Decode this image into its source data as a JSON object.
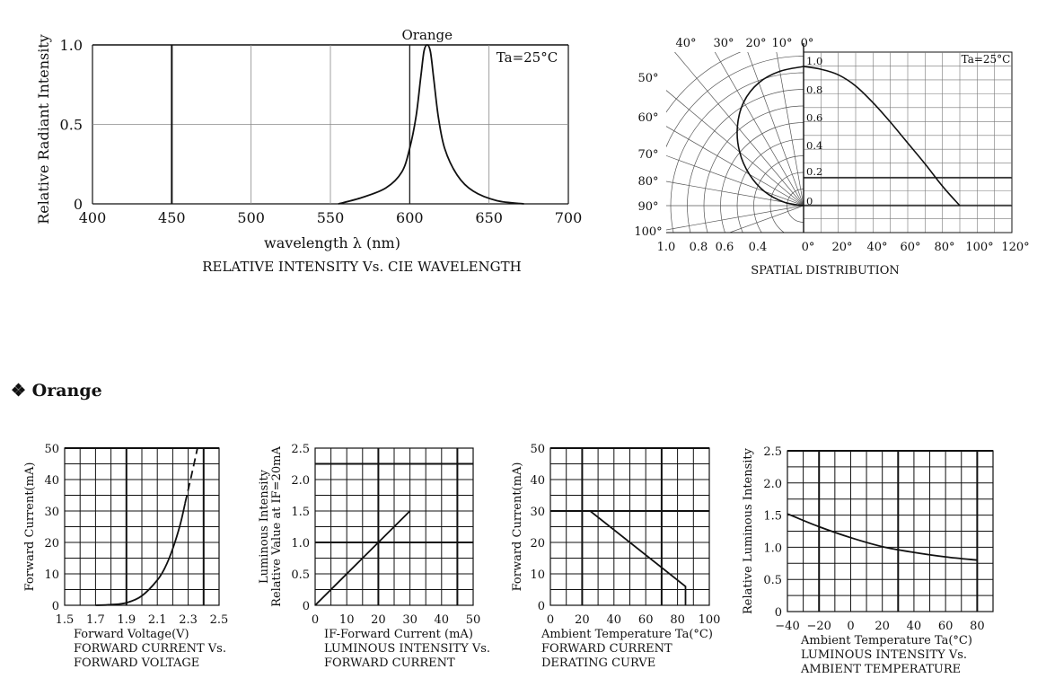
{
  "section_title": "❖ Orange",
  "chart_data": [
    {
      "type": "line",
      "caption": "RELATIVE INTENSITY Vs. CIE WAVELENGTH",
      "xlabel": "wavelength λ (nm)",
      "ylabel": "Relative Radiant Intensity",
      "xlim": [
        400,
        700
      ],
      "ylim": [
        0,
        1.0
      ],
      "x_ticks": [
        "400",
        "450",
        "500",
        "550",
        "600",
        "650",
        "700"
      ],
      "y_ticks": [
        "0",
        "0.5",
        "1.0"
      ],
      "annotation": "Ta=25°C",
      "peak_label": "Orange",
      "grid": true,
      "series": [
        {
          "name": "Orange",
          "points": [
            [
              555,
              0
            ],
            [
              570,
              0.04
            ],
            [
              585,
              0.1
            ],
            [
              595,
              0.2
            ],
            [
              600,
              0.35
            ],
            [
              604,
              0.55
            ],
            [
              607,
              0.8
            ],
            [
              609,
              0.96
            ],
            [
              611,
              1.0
            ],
            [
              613,
              0.96
            ],
            [
              615,
              0.8
            ],
            [
              618,
              0.55
            ],
            [
              622,
              0.35
            ],
            [
              630,
              0.18
            ],
            [
              640,
              0.08
            ],
            [
              655,
              0.02
            ],
            [
              672,
              0
            ]
          ]
        }
      ],
      "vertical_lines": [
        450
      ]
    },
    {
      "type": "polar",
      "caption": "SPATIAL DISTRIBUTION",
      "annotation": "Ta=25°C",
      "angle_labels": [
        "0°",
        "10°",
        "20°",
        "30°",
        "40°",
        "50°",
        "60°",
        "70°",
        "80°",
        "90°",
        "100°"
      ],
      "left_axis_labels": [
        "1.0",
        "0.8",
        "0.6",
        "0.4"
      ],
      "radial_labels": [
        "1.0",
        "0.8",
        "0.6",
        "0.4",
        "0.2",
        "0"
      ],
      "bottom_labels": [
        "0°",
        "20°",
        "40°",
        "60°",
        "80°",
        "100°",
        "120°"
      ],
      "series": [
        {
          "points": [
            [
              0,
              1.0
            ],
            [
              10,
              0.98
            ],
            [
              20,
              0.94
            ],
            [
              30,
              0.86
            ],
            [
              40,
              0.74
            ],
            [
              50,
              0.6
            ],
            [
              60,
              0.45
            ],
            [
              70,
              0.3
            ],
            [
              80,
              0.14
            ],
            [
              90,
              0
            ]
          ]
        }
      ]
    },
    {
      "type": "line",
      "caption": [
        "FORWARD CURRENT Vs.",
        "FORWARD VOLTAGE"
      ],
      "xlabel": "Forward Voltage(V)",
      "ylabel": "Forward Current(mA)",
      "xlim": [
        1.5,
        2.5
      ],
      "ylim": [
        0,
        50
      ],
      "x_ticks": [
        "1.5",
        "1.7",
        "1.9",
        "2.1",
        "2.3",
        "2.5"
      ],
      "y_ticks": [
        "0",
        "10",
        "20",
        "30",
        "40",
        "50"
      ],
      "series": [
        {
          "style": "solid",
          "points": [
            [
              1.7,
              0
            ],
            [
              1.8,
              0.2
            ],
            [
              1.9,
              0.8
            ],
            [
              2.0,
              3
            ],
            [
              2.1,
              8
            ],
            [
              2.15,
              12
            ],
            [
              2.2,
              18
            ],
            [
              2.25,
              26
            ],
            [
              2.28,
              32.5
            ]
          ]
        },
        {
          "style": "dashed",
          "points": [
            [
              2.28,
              32.5
            ],
            [
              2.32,
              41
            ],
            [
              2.36,
              50
            ]
          ]
        }
      ]
    },
    {
      "type": "line",
      "caption": [
        "LUMINOUS INTENSITY Vs.",
        "FORWARD CURRENT"
      ],
      "xlabel": "IF-Forward Current (mA)",
      "ylabel": [
        "Luminous Intensity",
        "Relative Value at IF=20mA"
      ],
      "xlim": [
        0,
        50
      ],
      "ylim": [
        0,
        2.5
      ],
      "x_ticks": [
        "0",
        "10",
        "20",
        "30",
        "40",
        "50"
      ],
      "y_ticks": [
        "0",
        "0.5",
        "1.0",
        "1.5",
        "2.0",
        "2.5"
      ],
      "series": [
        {
          "points": [
            [
              0,
              0
            ],
            [
              10,
              0.5
            ],
            [
              20,
              1.0
            ],
            [
              30,
              1.5
            ]
          ]
        }
      ]
    },
    {
      "type": "line",
      "caption": [
        "FORWARD CURRENT",
        "DERATING CURVE"
      ],
      "xlabel": "Ambient Temperature Ta(°C)",
      "ylabel": "Forward Current(mA)",
      "xlim": [
        0,
        100
      ],
      "ylim": [
        0,
        50
      ],
      "x_ticks": [
        "0",
        "20",
        "40",
        "60",
        "80",
        "100"
      ],
      "y_ticks": [
        "0",
        "10",
        "20",
        "30",
        "40",
        "50"
      ],
      "series": [
        {
          "points": [
            [
              0,
              30
            ],
            [
              25,
              30
            ],
            [
              85,
              6
            ],
            [
              85,
              0
            ]
          ]
        }
      ]
    },
    {
      "type": "line",
      "caption": [
        "LUMINOUS INTENSITY Vs.",
        "AMBIENT TEMPERATURE"
      ],
      "xlabel": "Ambient Temperature Ta(°C)",
      "ylabel": "Relative Luminous Intensity",
      "xlim": [
        -40,
        90
      ],
      "ylim": [
        0,
        2.5
      ],
      "x_ticks": [
        "-40",
        "-20",
        "0",
        "20",
        "40",
        "60",
        "80"
      ],
      "y_ticks": [
        "0",
        "0.5",
        "1.0",
        "1.5",
        "2.0",
        "2.5"
      ],
      "series": [
        {
          "points": [
            [
              -40,
              1.52
            ],
            [
              -20,
              1.32
            ],
            [
              0,
              1.15
            ],
            [
              20,
              1.01
            ],
            [
              40,
              0.92
            ],
            [
              60,
              0.85
            ],
            [
              80,
              0.8
            ]
          ]
        }
      ]
    }
  ]
}
